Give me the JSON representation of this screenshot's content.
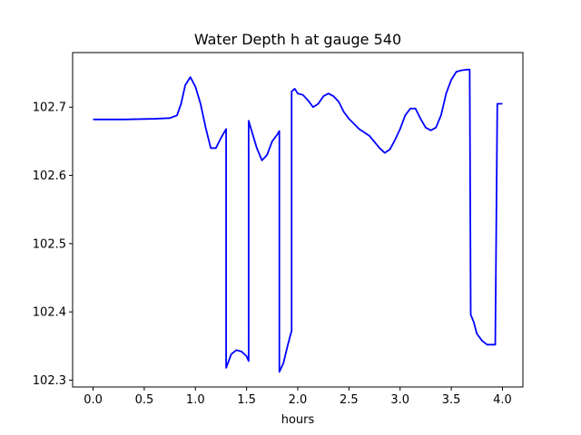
{
  "chart_data": {
    "type": "line",
    "title": "Water Depth h at gauge 540",
    "xlabel": "hours",
    "ylabel": "",
    "xlim": [
      -0.2,
      4.2
    ],
    "ylim": [
      102.29,
      102.78
    ],
    "xticks": [
      0.0,
      0.5,
      1.0,
      1.5,
      2.0,
      2.5,
      3.0,
      3.5,
      4.0
    ],
    "xtick_labels": [
      "0.0",
      "0.5",
      "1.0",
      "1.5",
      "2.0",
      "2.5",
      "3.0",
      "3.5",
      "4.0"
    ],
    "yticks": [
      102.3,
      102.4,
      102.5,
      102.6,
      102.7
    ],
    "ytick_labels": [
      "102.3",
      "102.4",
      "102.5",
      "102.6",
      "102.7"
    ],
    "grid": false,
    "series": [
      {
        "color": "#0000ff",
        "x": [
          0.0,
          0.3,
          0.6,
          0.75,
          0.82,
          0.86,
          0.9,
          0.95,
          1.0,
          1.05,
          1.1,
          1.15,
          1.2,
          1.25,
          1.3,
          1.3,
          1.35,
          1.4,
          1.45,
          1.5,
          1.52,
          1.52,
          1.55,
          1.6,
          1.65,
          1.7,
          1.75,
          1.8,
          1.82,
          1.82,
          1.86,
          1.9,
          1.93,
          1.94,
          1.94,
          1.97,
          2.0,
          2.05,
          2.1,
          2.15,
          2.2,
          2.25,
          2.3,
          2.35,
          2.4,
          2.45,
          2.5,
          2.6,
          2.7,
          2.8,
          2.85,
          2.9,
          2.95,
          3.0,
          3.05,
          3.1,
          3.15,
          3.2,
          3.25,
          3.3,
          3.35,
          3.4,
          3.45,
          3.5,
          3.55,
          3.6,
          3.65,
          3.68,
          3.69,
          3.69,
          3.72,
          3.75,
          3.8,
          3.85,
          3.9,
          3.93,
          3.95,
          3.95,
          3.98,
          4.0
        ],
        "y": [
          102.682,
          102.682,
          102.683,
          102.684,
          102.688,
          102.705,
          102.732,
          102.744,
          102.73,
          102.705,
          102.67,
          102.64,
          102.64,
          102.655,
          102.668,
          102.318,
          102.338,
          102.344,
          102.342,
          102.335,
          102.328,
          102.68,
          102.665,
          102.64,
          102.622,
          102.63,
          102.65,
          102.66,
          102.665,
          102.312,
          102.325,
          102.35,
          102.367,
          102.372,
          102.723,
          102.727,
          102.72,
          102.718,
          102.71,
          102.7,
          102.705,
          102.716,
          102.72,
          102.716,
          102.708,
          102.693,
          102.683,
          102.668,
          102.658,
          102.64,
          102.633,
          102.638,
          102.652,
          102.668,
          102.688,
          102.698,
          102.698,
          102.683,
          102.67,
          102.666,
          102.67,
          102.688,
          102.72,
          102.74,
          102.752,
          102.754,
          102.755,
          102.755,
          102.4,
          102.396,
          102.385,
          102.368,
          102.358,
          102.352,
          102.352,
          102.352,
          102.705,
          102.705,
          102.705,
          102.705
        ]
      }
    ]
  }
}
